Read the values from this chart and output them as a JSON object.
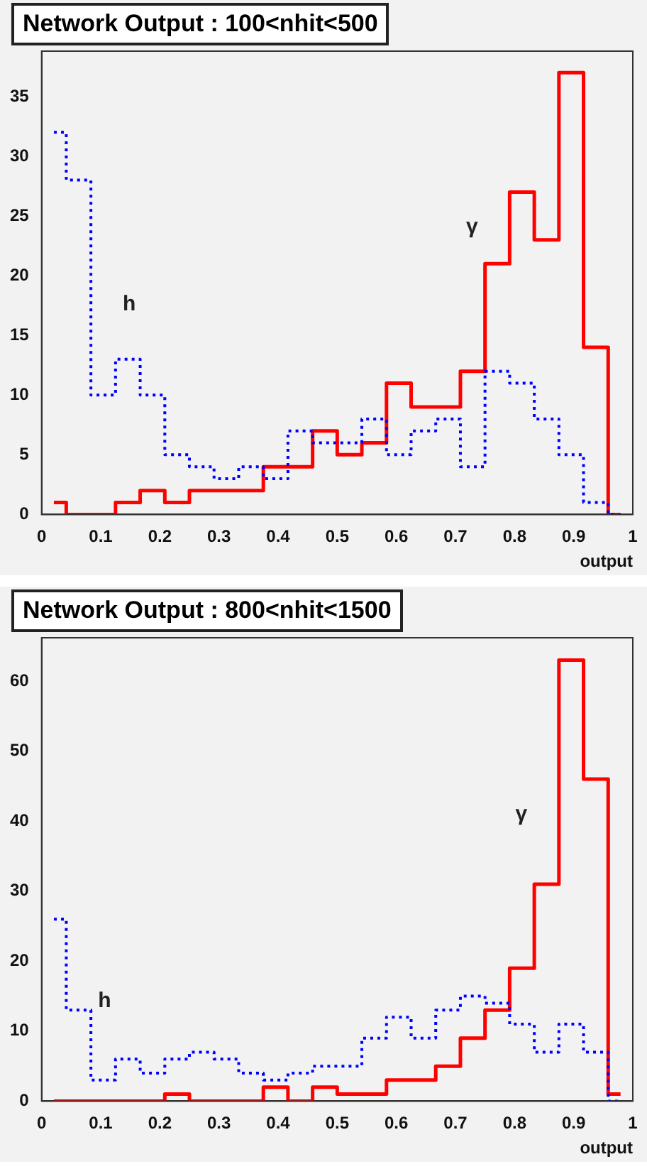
{
  "chart_data": [
    {
      "type": "step",
      "title": "Network Output : 100<nhit<500",
      "xlabel": "output",
      "x": [
        0.0208,
        0.0625,
        0.1042,
        0.1458,
        0.1875,
        0.2292,
        0.2708,
        0.3125,
        0.3542,
        0.3958,
        0.4375,
        0.4792,
        0.5208,
        0.5625,
        0.6042,
        0.6458,
        0.6875,
        0.7292,
        0.7708,
        0.8125,
        0.8542,
        0.8958,
        0.9375,
        0.9792
      ],
      "series": [
        {
          "name": "γ",
          "color": "#ff0000",
          "line_style": "solid",
          "values": [
            1,
            0,
            0,
            1,
            2,
            1,
            2,
            2,
            2,
            4,
            4,
            7,
            5,
            6,
            11,
            9,
            9,
            12,
            21,
            27,
            23,
            37,
            14,
            0
          ]
        },
        {
          "name": "h",
          "color": "#0000ff",
          "line_style": "dotted",
          "values": [
            32,
            28,
            10,
            13,
            10,
            5,
            4,
            3,
            4,
            3,
            7,
            6,
            6,
            8,
            5,
            7,
            8,
            4,
            12,
            11,
            8,
            5,
            1,
            0
          ]
        }
      ],
      "xlim": [
        0,
        1
      ],
      "xticks": [
        0,
        0.1,
        0.2,
        0.3,
        0.4,
        0.5,
        0.6,
        0.7,
        0.8,
        0.9,
        1
      ],
      "ylim": [
        0,
        38.8
      ],
      "yticks": [
        0,
        5,
        10,
        15,
        20,
        25,
        30,
        35
      ],
      "grid": false,
      "legend": false
    },
    {
      "type": "step",
      "title": "Network Output : 800<nhit<1500",
      "xlabel": "output",
      "x": [
        0.0208,
        0.0625,
        0.1042,
        0.1458,
        0.1875,
        0.2292,
        0.2708,
        0.3125,
        0.3542,
        0.3958,
        0.4375,
        0.4792,
        0.5208,
        0.5625,
        0.6042,
        0.6458,
        0.6875,
        0.7292,
        0.7708,
        0.8125,
        0.8542,
        0.8958,
        0.9375,
        0.9792
      ],
      "series": [
        {
          "name": "γ",
          "color": "#ff0000",
          "line_style": "solid",
          "values": [
            0,
            0,
            0,
            0,
            0,
            1,
            0,
            0,
            0,
            2,
            0,
            2,
            1,
            1,
            3,
            3,
            5,
            9,
            13,
            19,
            31,
            63,
            46,
            1
          ]
        },
        {
          "name": "h",
          "color": "#0000ff",
          "line_style": "dotted",
          "values": [
            26,
            13,
            3,
            6,
            4,
            6,
            7,
            6,
            4,
            3,
            4,
            5,
            5,
            9,
            12,
            9,
            13,
            15,
            14,
            11,
            7,
            11,
            7,
            0
          ]
        }
      ],
      "xlim": [
        0,
        1
      ],
      "xticks": [
        0,
        0.1,
        0.2,
        0.3,
        0.4,
        0.5,
        0.6,
        0.7,
        0.8,
        0.9,
        1
      ],
      "ylim": [
        0,
        66.2
      ],
      "yticks": [
        0,
        10,
        20,
        30,
        40,
        50,
        60
      ],
      "grid": false,
      "legend": false
    }
  ]
}
